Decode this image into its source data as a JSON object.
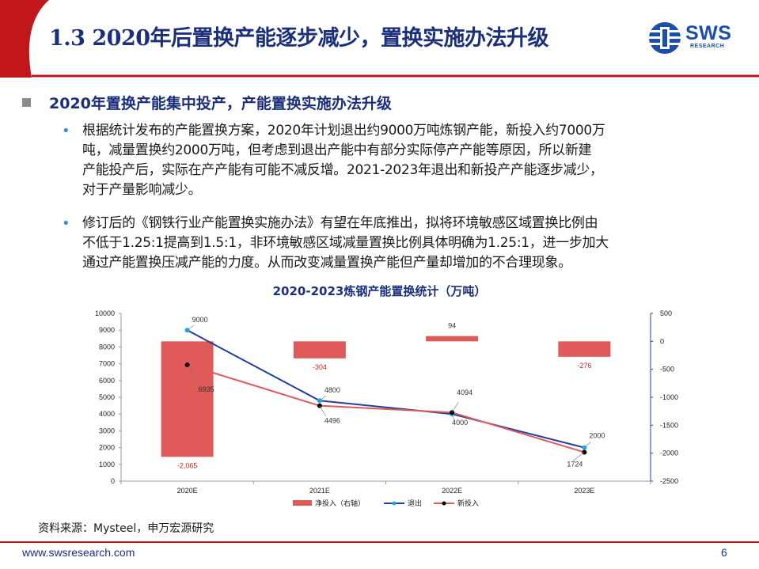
{
  "header": {
    "title": "1.3 2020年后置换产能逐步减少，置换实施办法升级",
    "logo_text": "SWS",
    "logo_sub": "RESEARCH"
  },
  "section": {
    "heading": "2020年置换产能集中投产，产能置换实施办法升级",
    "bullets": [
      {
        "lines": [
          "根据统计发布的产能置换方案，2020年计划退出约9000万吨炼钢产能，新投入约7000万",
          "吨，减量置换约2000万吨，但考虑到退出产能中有部分实际停产产能等原因，所以新建",
          "产能投产后，实际在产产能有可能不减反增。2021-2023年退出和新投产产能逐步减少，",
          "对于产量影响减少。"
        ]
      },
      {
        "lines": [
          "修订后的《钢铁行业产能置换实施办法》有望在年底推出，拟将环境敏感区域置换比例由",
          "不低于1.25:1提高到1.5:1，非环境敏感区域减量置换比例具体明确为1.25:1，进一步加大",
          "通过产能置换压减产能的力度。从而改变减量置换产能但产量却增加的不合理现象。"
        ]
      }
    ]
  },
  "chart_data": {
    "type": "bar",
    "title": "2020-2023炼钢产能置换统计（万吨）",
    "categories": [
      "2020E",
      "2021E",
      "2022E",
      "2023E"
    ],
    "series": [
      {
        "name": "净投入（右轴）",
        "kind": "bar",
        "axis": "right",
        "values": [
          -2065,
          -304,
          94,
          -276
        ],
        "labels": [
          "-2,065",
          "-304",
          "94",
          "-276"
        ],
        "color": "#e05a5a"
      },
      {
        "name": "退出",
        "kind": "line",
        "axis": "left",
        "values": [
          9000,
          4800,
          4000,
          2000
        ],
        "labels": [
          "9000",
          "4800",
          "4000",
          "2000"
        ],
        "color": "#1f3f9f"
      },
      {
        "name": "新投入",
        "kind": "line",
        "axis": "left",
        "values": [
          6935,
          4496,
          4094,
          1724
        ],
        "labels": [
          "6935",
          "4496",
          "4094",
          "1724"
        ],
        "color": "#e05a5a"
      }
    ],
    "ylim_left": [
      0,
      10000
    ],
    "yticks_left": [
      "0",
      "1000",
      "2000",
      "3000",
      "4000",
      "5000",
      "6000",
      "7000",
      "8000",
      "9000",
      "10000"
    ],
    "ylim_right": [
      -2500,
      500
    ],
    "yticks_right": [
      "-2500",
      "-2000",
      "-1500",
      "-1000",
      "-500",
      "0",
      "500"
    ],
    "grid": false,
    "legend_position": "bottom"
  },
  "footer": {
    "source": "资料来源：Mysteel，申万宏源研究",
    "url": "www.swsresearch.com",
    "page": "6"
  }
}
